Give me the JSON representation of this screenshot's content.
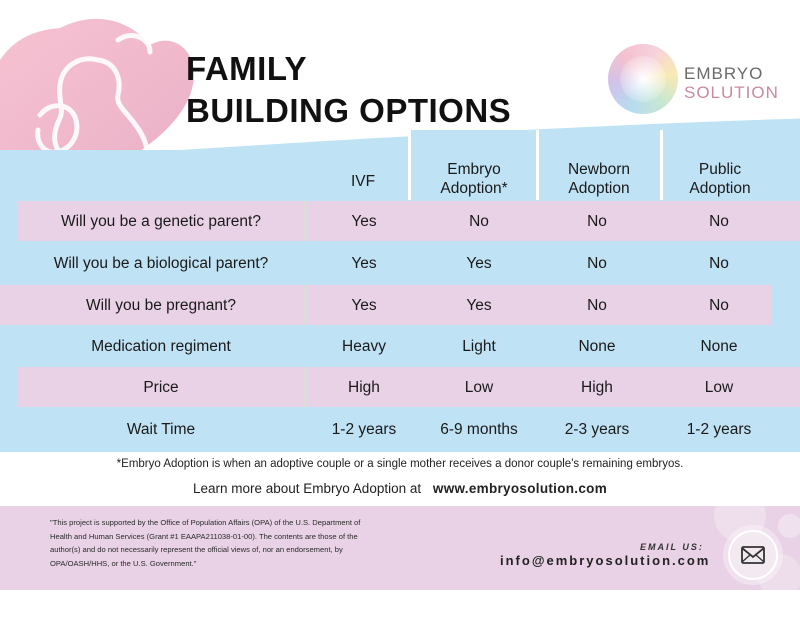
{
  "title": {
    "line1": "FAMILY",
    "line2": "BUILDING OPTIONS"
  },
  "logo": {
    "icon": "watercolor-circle-icon",
    "line1": "EMBRYO",
    "line2": "SOLUTION"
  },
  "hero": {
    "icon": "mother-and-baby-heart-icon"
  },
  "table": {
    "columns": [
      {
        "label": "IVF"
      },
      {
        "label": "Embryo\nAdoption*"
      },
      {
        "label": "Newborn\nAdoption"
      },
      {
        "label": "Public\nAdoption"
      }
    ],
    "rows": [
      {
        "label": "Will you be a genetic parent?",
        "values": [
          "Yes",
          "No",
          "No",
          "No"
        ]
      },
      {
        "label": "Will you be a biological parent?",
        "values": [
          "Yes",
          "Yes",
          "No",
          "No"
        ]
      },
      {
        "label": "Will you be pregnant?",
        "values": [
          "Yes",
          "Yes",
          "No",
          "No"
        ]
      },
      {
        "label": "Medication regiment",
        "values": [
          "Heavy",
          "Light",
          "None",
          "None"
        ]
      },
      {
        "label": "Price",
        "values": [
          "High",
          "Low",
          "High",
          "Low"
        ]
      },
      {
        "label": "Wait Time",
        "values": [
          "1-2 years",
          "6-9 months",
          "2-3 years",
          "1-2 years"
        ]
      }
    ]
  },
  "footnote": "*Embryo Adoption is when an adoptive couple or a single mother receives a donor couple's remaining embryos.",
  "learn_more": {
    "text": "Learn more about Embryo Adoption at",
    "url": "www.embryosolution.com"
  },
  "footer": {
    "disclaimer": "\"This project is supported by the Office of Population Affairs (OPA) of the U.S. Department of Health and Human Services (Grant #1 EAAPA211038-01-00). The contents are those of the author(s) and do not necessarily represent the official views of, nor an endorsement, by OPA/OASH/HHS, or the U.S. Government.\"",
    "email_label": "EMAIL US:",
    "email": "info@embryosolution.com",
    "email_icon": "envelope-icon"
  },
  "colors": {
    "blue": "#bfe2f4",
    "pink": "#e9d2e6",
    "heart_pink": "#f2b9cc"
  }
}
